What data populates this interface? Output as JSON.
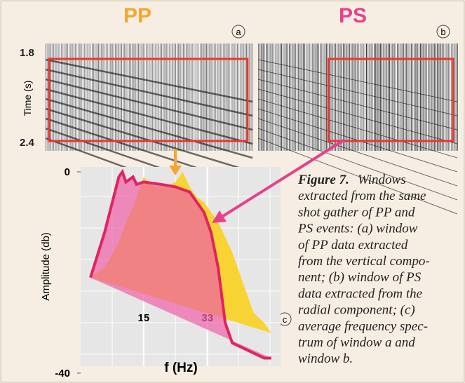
{
  "figure": {
    "panels": [
      {
        "title": "PP",
        "letter": "a"
      },
      {
        "title": "PS",
        "letter": "b"
      }
    ],
    "time_axis": {
      "label": "Time (s)",
      "ticks": [
        1.8,
        2.4
      ]
    },
    "chart_letter": "c"
  },
  "chart_data": {
    "type": "area",
    "xlabel": "f (Hz)",
    "ylabel": "Amplitude (db)",
    "x": [
      0,
      4,
      8,
      9,
      10,
      12,
      13,
      15,
      18,
      21,
      24,
      26,
      28,
      30,
      32,
      34,
      36,
      38,
      40,
      43,
      46,
      49,
      51
    ],
    "series": [
      {
        "color": "#f7d433",
        "values": [
          -21,
          -19,
          -14,
          -12,
          -10,
          -7,
          -5,
          -1,
          -3,
          -3,
          -2,
          0,
          -3,
          -5,
          -6,
          -8,
          -10,
          -13,
          -16,
          -22,
          -28,
          -30,
          -32
        ]
      },
      {
        "color": "#ee5fa6",
        "edgecolor": "#e0245e",
        "values": [
          -21,
          -12,
          -1,
          0,
          -2,
          -1,
          -2.5,
          -2,
          -2.3,
          -2.6,
          -3,
          -3.5,
          -4,
          -6,
          -8,
          -12,
          -19,
          -30,
          -34,
          -35,
          -36,
          -37,
          -37
        ]
      }
    ],
    "xlim": [
      0,
      55
    ],
    "ylim": [
      -40,
      0
    ],
    "xticks": [
      15,
      33
    ],
    "yticks": [
      0,
      -40
    ]
  },
  "caption": {
    "label": "Figure 7.",
    "lines": [
      "Windows",
      "extracted from the same",
      "shot gather of PP and",
      "PS events: (a) window",
      "of PP data extracted",
      "from the vertical compo-",
      "nent; (b) window of PS",
      "data extracted from the",
      "radial component; (c)",
      "average frequency spec-",
      "trum of window a and",
      "window b."
    ]
  }
}
